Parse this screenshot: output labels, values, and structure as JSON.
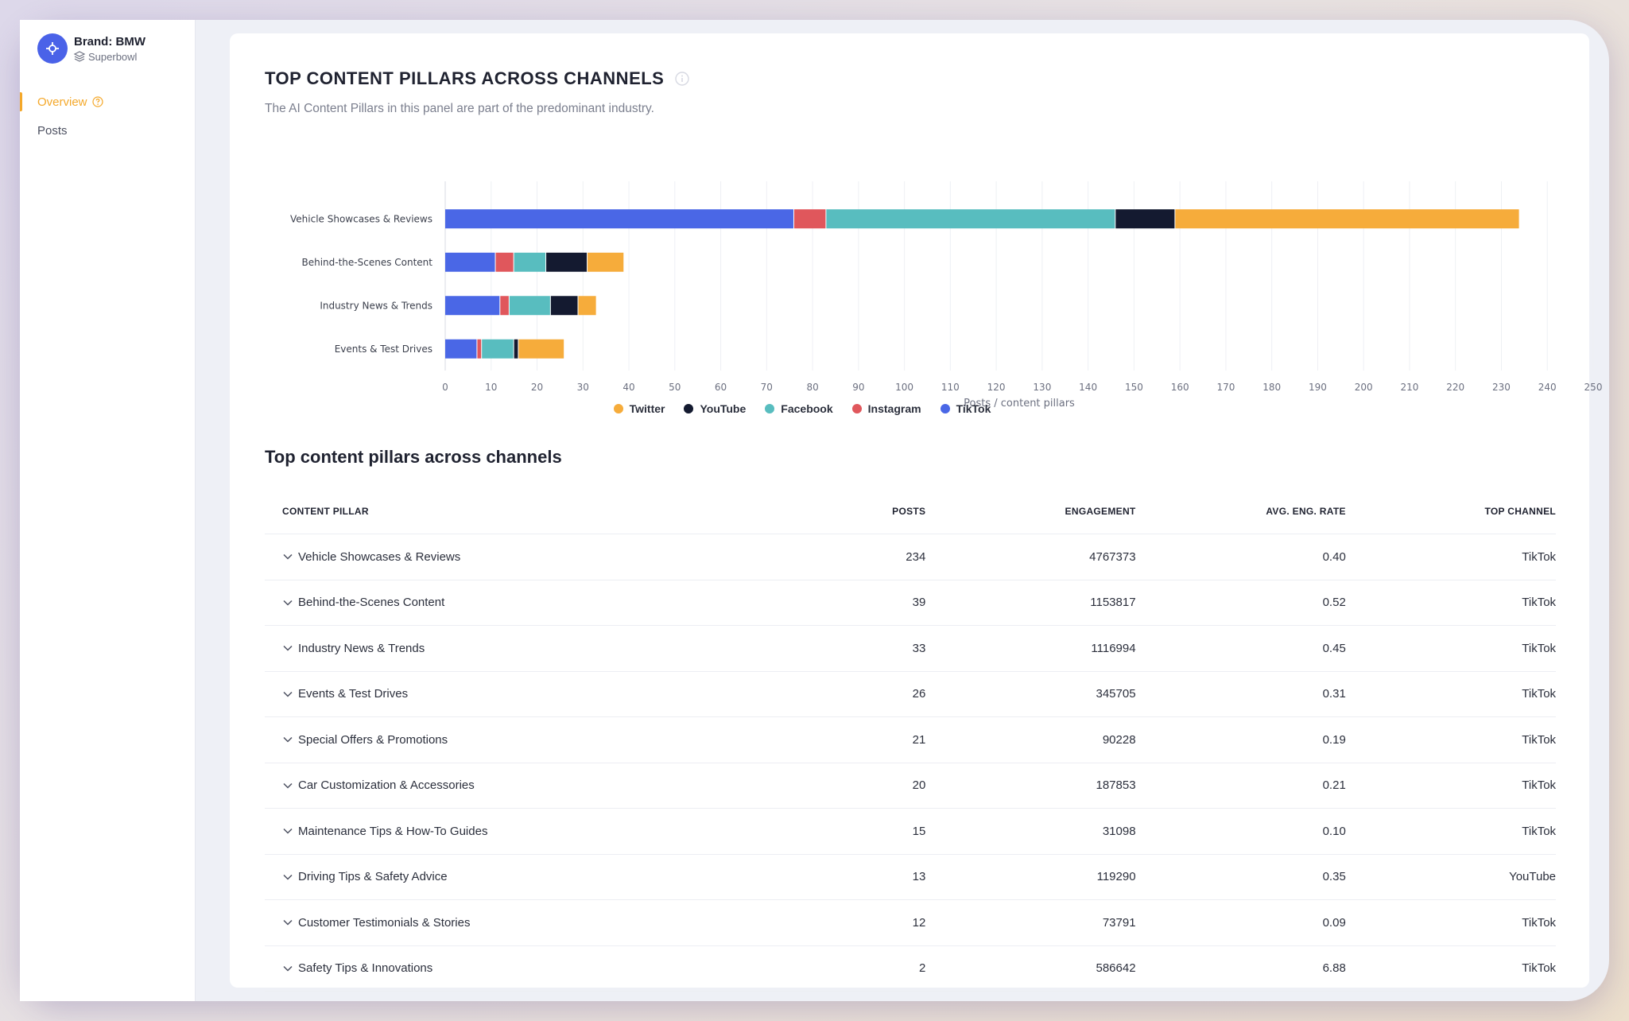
{
  "brand": {
    "name": "Brand: BMW",
    "campaign": "Superbowl"
  },
  "nav": {
    "items": [
      {
        "label": "Overview",
        "active": true
      },
      {
        "label": "Posts",
        "active": false
      }
    ]
  },
  "panel": {
    "title": "TOP CONTENT PILLARS ACROSS CHANNELS",
    "description": "The AI Content Pillars in this panel are part of the predominant industry."
  },
  "chart_data": {
    "type": "bar",
    "orientation": "horizontal",
    "stacked": true,
    "categories": [
      "Vehicle Showcases & Reviews",
      "Behind-the-Scenes Content",
      "Industry News & Trends",
      "Events & Test Drives"
    ],
    "series": [
      {
        "name": "TikTok",
        "color": "#4a67e6",
        "values": [
          76,
          11,
          12,
          7
        ]
      },
      {
        "name": "Instagram",
        "color": "#e0575c",
        "values": [
          7,
          4,
          2,
          1
        ]
      },
      {
        "name": "Facebook",
        "color": "#58bdbf",
        "values": [
          63,
          7,
          9,
          7
        ]
      },
      {
        "name": "YouTube",
        "color": "#141a30",
        "values": [
          13,
          9,
          6,
          1
        ]
      },
      {
        "name": "Twitter",
        "color": "#f6ac3b",
        "values": [
          75,
          8,
          4,
          10
        ]
      }
    ],
    "xlabel": "Posts / content pillars",
    "xlim": [
      0,
      250
    ],
    "xticks": [
      0,
      10,
      20,
      30,
      40,
      50,
      60,
      70,
      80,
      90,
      100,
      110,
      120,
      130,
      140,
      150,
      160,
      170,
      180,
      190,
      200,
      210,
      220,
      230,
      240,
      250
    ],
    "grid": true,
    "legend": {
      "position": "bottom",
      "order": [
        "Twitter",
        "YouTube",
        "Facebook",
        "Instagram",
        "TikTok"
      ]
    }
  },
  "table": {
    "title": "Top content pillars across channels",
    "columns": {
      "pillar": "CONTENT PILLAR",
      "posts": "POSTS",
      "engagement": "ENGAGEMENT",
      "rate": "AVG. ENG. RATE",
      "channel": "TOP CHANNEL"
    },
    "rows": [
      {
        "pillar": "Vehicle Showcases & Reviews",
        "posts": "234",
        "engagement": "4767373",
        "rate": "0.40",
        "channel": "TikTok"
      },
      {
        "pillar": "Behind-the-Scenes Content",
        "posts": "39",
        "engagement": "1153817",
        "rate": "0.52",
        "channel": "TikTok"
      },
      {
        "pillar": "Industry News & Trends",
        "posts": "33",
        "engagement": "1116994",
        "rate": "0.45",
        "channel": "TikTok"
      },
      {
        "pillar": "Events & Test Drives",
        "posts": "26",
        "engagement": "345705",
        "rate": "0.31",
        "channel": "TikTok"
      },
      {
        "pillar": "Special Offers & Promotions",
        "posts": "21",
        "engagement": "90228",
        "rate": "0.19",
        "channel": "TikTok"
      },
      {
        "pillar": "Car Customization & Accessories",
        "posts": "20",
        "engagement": "187853",
        "rate": "0.21",
        "channel": "TikTok"
      },
      {
        "pillar": "Maintenance Tips & How-To Guides",
        "posts": "15",
        "engagement": "31098",
        "rate": "0.10",
        "channel": "TikTok"
      },
      {
        "pillar": "Driving Tips & Safety Advice",
        "posts": "13",
        "engagement": "119290",
        "rate": "0.35",
        "channel": "YouTube"
      },
      {
        "pillar": "Customer Testimonials & Stories",
        "posts": "12",
        "engagement": "73791",
        "rate": "0.09",
        "channel": "TikTok"
      },
      {
        "pillar": "Safety Tips & Innovations",
        "posts": "2",
        "engagement": "586642",
        "rate": "6.88",
        "channel": "TikTok"
      }
    ]
  },
  "icons": {
    "brand": "crosshair-icon",
    "campaign": "layers-icon",
    "help": "help-circle-icon",
    "info": "info-icon",
    "expand": "chevron-down-icon"
  }
}
